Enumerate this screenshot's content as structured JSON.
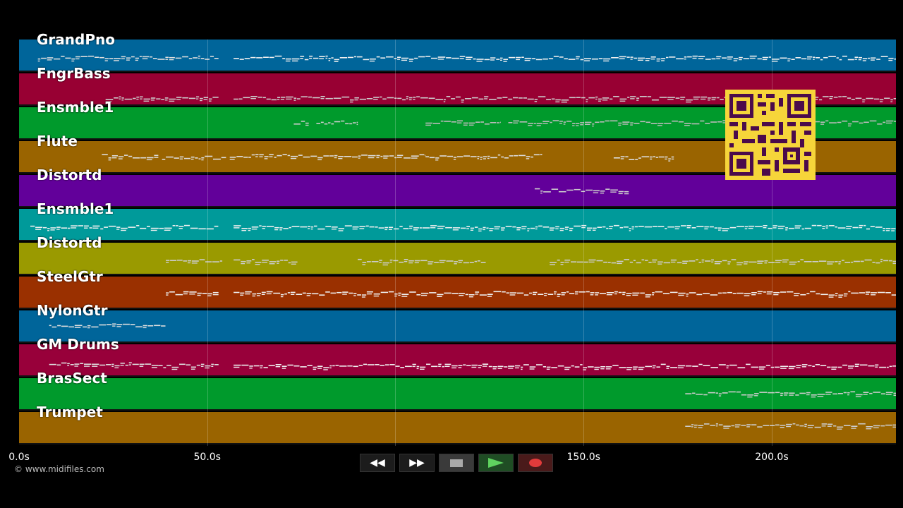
{
  "tracks": [
    {
      "name": "GrandPno",
      "color": "#00659a",
      "notes": [
        [
          5,
          53,
          0.55,
          "#ddd"
        ],
        [
          57,
          235,
          0.55,
          "#eee"
        ]
      ]
    },
    {
      "name": "FngrBass",
      "color": "#980033",
      "notes": [
        [
          23,
          53,
          0.75,
          "#ccc"
        ],
        [
          57,
          235,
          0.75,
          "#ccc"
        ]
      ]
    },
    {
      "name": "Ensmble1",
      "color": "#009a2c",
      "notes": [
        [
          73,
          77,
          0.45,
          "#ccc"
        ],
        [
          79,
          90,
          0.45,
          "#ccc"
        ],
        [
          108,
          128,
          0.45,
          "#bbb"
        ],
        [
          130,
          235,
          0.45,
          "#bbb"
        ]
      ]
    },
    {
      "name": "Flute",
      "color": "#9a6400",
      "notes": [
        [
          22,
          37,
          0.45,
          "#ddd"
        ],
        [
          38,
          55,
          0.5,
          "#ddd"
        ],
        [
          56,
          108,
          0.45,
          "#ddd"
        ],
        [
          108,
          139,
          0.45,
          "#ddd"
        ],
        [
          158,
          174,
          0.5,
          "#ddd"
        ]
      ]
    },
    {
      "name": "Distortd",
      "color": "#62009a",
      "notes": [
        [
          137,
          162,
          0.45,
          "#ccc"
        ]
      ]
    },
    {
      "name": "Ensmble1",
      "color": "#009a9a",
      "notes": [
        [
          3,
          53,
          0.55,
          "#eee"
        ],
        [
          57,
          235,
          0.55,
          "#eee"
        ]
      ]
    },
    {
      "name": "Distortd",
      "color": "#9a9a00",
      "notes": [
        [
          39,
          54,
          0.55,
          "#ccc"
        ],
        [
          57,
          74,
          0.55,
          "#ccc"
        ],
        [
          90,
          124,
          0.55,
          "#ccc"
        ],
        [
          141,
          235,
          0.55,
          "#ccc"
        ]
      ]
    },
    {
      "name": "SteelGtr",
      "color": "#9a3000",
      "notes": [
        [
          39,
          53,
          0.5,
          "#eee"
        ],
        [
          57,
          235,
          0.5,
          "#eee"
        ]
      ]
    },
    {
      "name": "NylonGtr",
      "color": "#00659a",
      "notes": [
        [
          8,
          39,
          0.45,
          "#ddd"
        ]
      ]
    },
    {
      "name": "GM Drums",
      "color": "#98003a",
      "notes": [
        [
          8,
          37,
          0.6,
          "#ddd"
        ],
        [
          37,
          53,
          0.65,
          "#ddd"
        ],
        [
          57,
          233,
          0.65,
          "#eee"
        ]
      ]
    },
    {
      "name": "BrasSect",
      "color": "#009a2c",
      "notes": [
        [
          177,
          233,
          0.45,
          "#ccc"
        ]
      ]
    },
    {
      "name": "Trumpet",
      "color": "#9a6400",
      "notes": [
        [
          177,
          233,
          0.4,
          "#ccc"
        ]
      ]
    }
  ],
  "axis": {
    "xlim": [
      0,
      233
    ],
    "ticks": [
      {
        "value": 0,
        "label": "0.0s"
      },
      {
        "value": 50,
        "label": "50.0s"
      },
      {
        "value": 150,
        "label": "150.0s"
      },
      {
        "value": 200,
        "label": "200.0s"
      }
    ]
  },
  "copyright": "© www.midifiles.com",
  "transport": {
    "rewind_label": "◀◀",
    "forward_label": "▶▶"
  }
}
